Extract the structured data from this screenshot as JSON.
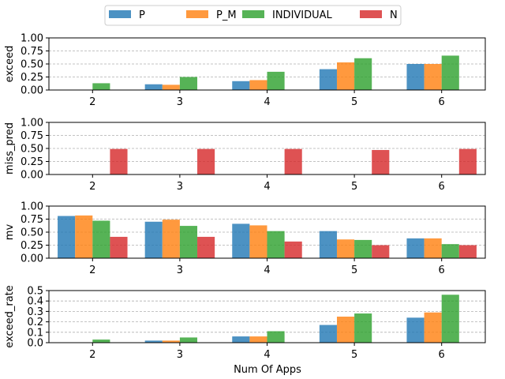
{
  "chart_data": {
    "type": "bar",
    "xlabel": "Num Of Apps",
    "categories": [
      "2",
      "3",
      "4",
      "5",
      "6"
    ],
    "legend": {
      "placement": "top-center",
      "entries": [
        {
          "name": "P",
          "color": "#1f77b4"
        },
        {
          "name": "P_M",
          "color": "#ff7f0e"
        },
        {
          "name": "INDIVIDUAL",
          "color": "#2ca02c"
        },
        {
          "name": "N",
          "color": "#d62728"
        }
      ]
    },
    "grid": "y-dashed",
    "panels": [
      {
        "ylabel": "exceed",
        "ylim": [
          0,
          1.0
        ],
        "yticks": [
          "0.00",
          "0.25",
          "0.50",
          "0.75",
          "1.00"
        ],
        "ytick_values": [
          0,
          0.25,
          0.5,
          0.75,
          1.0
        ],
        "series": [
          {
            "name": "P",
            "values": [
              0,
              0.11,
              0.17,
              0.4,
              0.5
            ]
          },
          {
            "name": "P_M",
            "values": [
              0,
              0.1,
              0.19,
              0.53,
              0.5
            ]
          },
          {
            "name": "INDIVIDUAL",
            "values": [
              0.13,
              0.25,
              0.35,
              0.61,
              0.66
            ]
          },
          {
            "name": "N",
            "values": [
              0,
              0,
              0,
              0,
              0
            ]
          }
        ]
      },
      {
        "ylabel": "miss_pred",
        "ylim": [
          0,
          1.0
        ],
        "yticks": [
          "0.00",
          "0.25",
          "0.50",
          "0.75",
          "1.00"
        ],
        "ytick_values": [
          0,
          0.25,
          0.5,
          0.75,
          1.0
        ],
        "series": [
          {
            "name": "P",
            "values": [
              0,
              0,
              0,
              0,
              0
            ]
          },
          {
            "name": "P_M",
            "values": [
              0,
              0,
              0,
              0,
              0
            ]
          },
          {
            "name": "INDIVIDUAL",
            "values": [
              0,
              0,
              0,
              0,
              0
            ]
          },
          {
            "name": "N",
            "values": [
              0.49,
              0.49,
              0.49,
              0.47,
              0.49
            ]
          }
        ]
      },
      {
        "ylabel": "mv",
        "ylim": [
          0,
          1.0
        ],
        "yticks": [
          "0.00",
          "0.25",
          "0.50",
          "0.75",
          "1.00"
        ],
        "ytick_values": [
          0,
          0.25,
          0.5,
          0.75,
          1.0
        ],
        "series": [
          {
            "name": "P",
            "values": [
              0.81,
              0.7,
              0.66,
              0.52,
              0.38
            ]
          },
          {
            "name": "P_M",
            "values": [
              0.82,
              0.74,
              0.63,
              0.36,
              0.38
            ]
          },
          {
            "name": "INDIVIDUAL",
            "values": [
              0.72,
              0.62,
              0.52,
              0.35,
              0.27
            ]
          },
          {
            "name": "N",
            "values": [
              0.41,
              0.41,
              0.32,
              0.25,
              0.25
            ]
          }
        ]
      },
      {
        "ylabel": "exceed_rate",
        "ylim": [
          0,
          0.5
        ],
        "yticks": [
          "0.0",
          "0.1",
          "0.2",
          "0.3",
          "0.4",
          "0.5"
        ],
        "ytick_values": [
          0,
          0.1,
          0.2,
          0.3,
          0.4,
          0.5
        ],
        "series": [
          {
            "name": "P",
            "values": [
              0,
              0.02,
              0.06,
              0.17,
              0.24
            ]
          },
          {
            "name": "P_M",
            "values": [
              0,
              0.02,
              0.06,
              0.25,
              0.29
            ]
          },
          {
            "name": "INDIVIDUAL",
            "values": [
              0.03,
              0.05,
              0.11,
              0.28,
              0.46
            ]
          },
          {
            "name": "N",
            "values": [
              0,
              0,
              0,
              0,
              0
            ]
          }
        ]
      }
    ]
  }
}
